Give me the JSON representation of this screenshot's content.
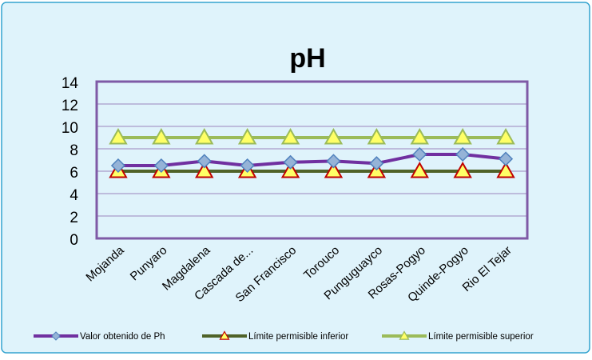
{
  "colors": {
    "background": "#dff3fb",
    "border": "#33a3cf",
    "plot_border": "#7f5aa6",
    "gridline": "#9b86bd",
    "series_main": "#7030a0",
    "marker_main_fill": "#95b3d7",
    "marker_main_stroke": "#4f81bd",
    "series_lower": "#4f6228",
    "series_upper": "#9bbb59",
    "triangle_fill": "#ffff66",
    "triangle_stroke_lower": "#c00000",
    "triangle_stroke_upper": "#9bbb59"
  },
  "chart_data": {
    "type": "line",
    "title": "pH",
    "xlabel": "",
    "ylabel": "",
    "ylim": [
      0,
      14
    ],
    "yticks": [
      "0",
      "2",
      "4",
      "6",
      "8",
      "10",
      "12",
      "14"
    ],
    "grid": true,
    "legend_position": "bottom",
    "categories": [
      "Mojanda",
      "Punyaro",
      "Magdalena",
      "Cascada de...",
      "San Francisco",
      "Torouco",
      "Punguguayco",
      "Rosas-Pogyo",
      "Quinde-Pogyo",
      "Rio El Tejar"
    ],
    "series": [
      {
        "name": "Valor obtenido de Ph",
        "values": [
          6.5,
          6.5,
          6.9,
          6.5,
          6.8,
          6.9,
          6.7,
          7.5,
          7.5,
          7.1
        ],
        "marker": "diamond"
      },
      {
        "name": "Límite permisible inferior",
        "values": [
          6,
          6,
          6,
          6,
          6,
          6,
          6,
          6,
          6,
          6
        ],
        "marker": "triangle"
      },
      {
        "name": "Límite permisible superior",
        "values": [
          9,
          9,
          9,
          9,
          9,
          9,
          9,
          9,
          9,
          9
        ],
        "marker": "triangle"
      }
    ]
  }
}
